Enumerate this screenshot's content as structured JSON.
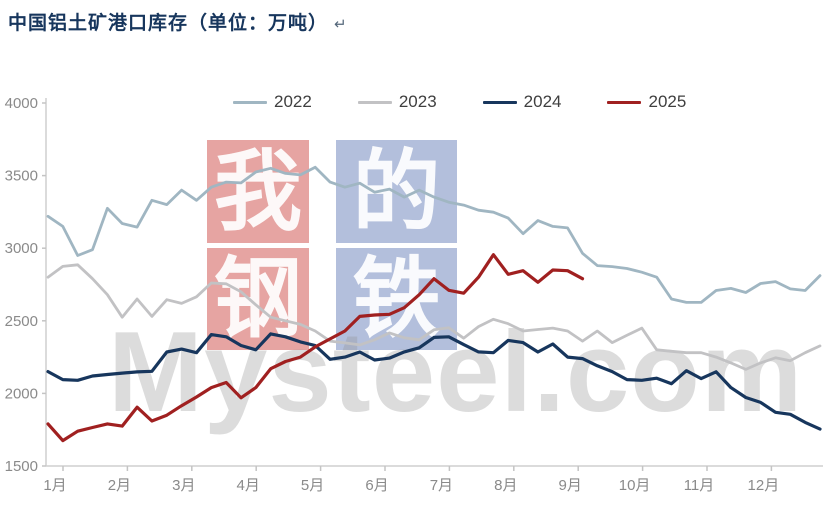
{
  "title": {
    "text": "中国铝土矿港口库存（单位：万吨）",
    "return_mark": "↵"
  },
  "watermark": {
    "text": "Mysteel.com",
    "blocks": [
      {
        "char": "我",
        "color": "red"
      },
      {
        "char": "的",
        "color": "blue"
      },
      {
        "char": "钢",
        "color": "red"
      },
      {
        "char": "铁",
        "color": "blue"
      }
    ]
  },
  "axes": {
    "y_ticks": [
      1500,
      2000,
      2500,
      3000,
      3500,
      4000
    ],
    "x_labels": [
      "1月",
      "2月",
      "3月",
      "4月",
      "5月",
      "6月",
      "7月",
      "8月",
      "9月",
      "10月",
      "11月",
      "12月"
    ]
  },
  "chart_data": {
    "type": "line",
    "title": "中国铝土矿港口库存（单位：万吨）",
    "unit": "万吨",
    "x_mode": "weekly",
    "x_axis_labels": [
      "1月",
      "2月",
      "3月",
      "4月",
      "5月",
      "6月",
      "7月",
      "8月",
      "9月",
      "10月",
      "11月",
      "12月"
    ],
    "ylim": [
      1500,
      4000
    ],
    "y_tick_step": 500,
    "grid": false,
    "legend_position": "top",
    "series": [
      {
        "name": "2022",
        "color": "#a0b6c2",
        "values": [
          3220,
          3150,
          2950,
          2990,
          3275,
          3170,
          3145,
          3330,
          3300,
          3400,
          3330,
          3420,
          3455,
          3450,
          3525,
          3550,
          3515,
          3505,
          3558,
          3455,
          3420,
          3448,
          3386,
          3407,
          3352,
          3400,
          3352,
          3317,
          3297,
          3262,
          3248,
          3207,
          3100,
          3190,
          3150,
          3140,
          2965,
          2880,
          2873,
          2860,
          2835,
          2800,
          2650,
          2627,
          2627,
          2709,
          2723,
          2695,
          2757,
          2770,
          2720,
          2709,
          2811
        ]
      },
      {
        "name": "2023",
        "color": "#c2c2c4",
        "values": [
          2800,
          2875,
          2886,
          2790,
          2680,
          2525,
          2650,
          2530,
          2645,
          2620,
          2665,
          2760,
          2755,
          2700,
          2610,
          2525,
          2500,
          2475,
          2430,
          2360,
          2348,
          2334,
          2369,
          2417,
          2383,
          2369,
          2438,
          2452,
          2380,
          2460,
          2510,
          2480,
          2430,
          2440,
          2450,
          2430,
          2360,
          2430,
          2350,
          2400,
          2450,
          2300,
          2290,
          2280,
          2280,
          2250,
          2210,
          2165,
          2210,
          2245,
          2225,
          2280,
          2327
        ]
      },
      {
        "name": "2024",
        "color": "#17365d",
        "values": [
          2150,
          2095,
          2090,
          2120,
          2130,
          2140,
          2148,
          2152,
          2285,
          2305,
          2280,
          2405,
          2390,
          2330,
          2300,
          2410,
          2390,
          2355,
          2330,
          2235,
          2250,
          2285,
          2230,
          2243,
          2286,
          2314,
          2386,
          2390,
          2336,
          2286,
          2280,
          2365,
          2350,
          2285,
          2340,
          2250,
          2240,
          2190,
          2150,
          2095,
          2090,
          2105,
          2067,
          2156,
          2102,
          2149,
          2040,
          1972,
          1938,
          1870,
          1856,
          1800,
          1754
        ]
      },
      {
        "name": "2025",
        "color": "#a02020",
        "values": [
          1790,
          1675,
          1740,
          1765,
          1790,
          1775,
          1905,
          1810,
          1850,
          1915,
          1975,
          2040,
          2075,
          1970,
          2040,
          2170,
          2220,
          2250,
          2320,
          2375,
          2430,
          2530,
          2540,
          2545,
          2590,
          2680,
          2790,
          2710,
          2690,
          2800,
          2955,
          2820,
          2845,
          2765,
          2850,
          2845,
          2790
        ]
      }
    ]
  }
}
